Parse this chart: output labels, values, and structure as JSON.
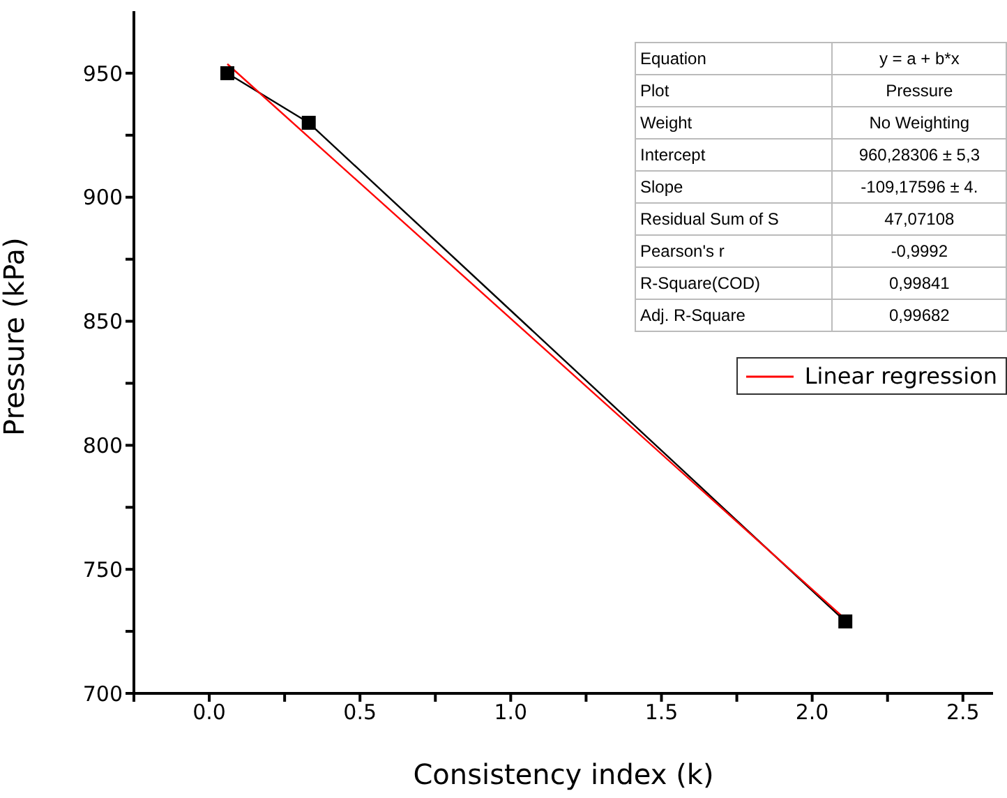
{
  "chart_data": {
    "type": "line",
    "xlabel": "Consistency index (k)",
    "ylabel": "Pressure (kPa)",
    "xlim": [
      -0.25,
      2.6
    ],
    "xticks": [
      {
        "value": -0.25,
        "label": null
      },
      {
        "value": 0,
        "label": "0.0"
      },
      {
        "value": 0.25,
        "label": null
      },
      0.5,
      {
        "value": 0.75,
        "label": null
      },
      {
        "value": 1,
        "label": "1.0"
      },
      {
        "value": 1.25,
        "label": null
      },
      1.5,
      {
        "value": 1.75,
        "label": null
      },
      {
        "value": 2,
        "label": "2.0"
      },
      {
        "value": 2.25,
        "label": null
      },
      2.5
    ],
    "ylim": [
      700,
      975
    ],
    "yticks": [
      700,
      {
        "value": 725,
        "label": null
      },
      750,
      {
        "value": 775,
        "label": null
      },
      800,
      {
        "value": 825,
        "label": null
      },
      850,
      {
        "value": 875,
        "label": null
      },
      900,
      {
        "value": 925,
        "label": null
      },
      950
    ],
    "series": [
      {
        "color": "#000000",
        "marker": "square",
        "x": [
          0.06,
          0.33,
          2.11
        ],
        "values": [
          950,
          930,
          729
        ]
      },
      {
        "name": "Linear regression",
        "color": "#ff0000",
        "marker": "none",
        "x": [
          0.06,
          2.11
        ],
        "values": [
          953.7,
          729.9
        ]
      }
    ],
    "legend": "right",
    "grid": false,
    "annotations": [
      "Equation",
      "y = a + b*x",
      "Plot",
      "Pressure",
      "Weight",
      "No Weighting",
      "Intercept",
      "960,28306 ± 5,3",
      "Slope",
      "-109,17596 ± 4.",
      "Residual Sum of S",
      "47,07108",
      "Pearson's r",
      "-0,9992",
      "R-Square(COD)",
      "0,99841",
      "Adj. R-Square",
      "0,99682"
    ]
  }
}
